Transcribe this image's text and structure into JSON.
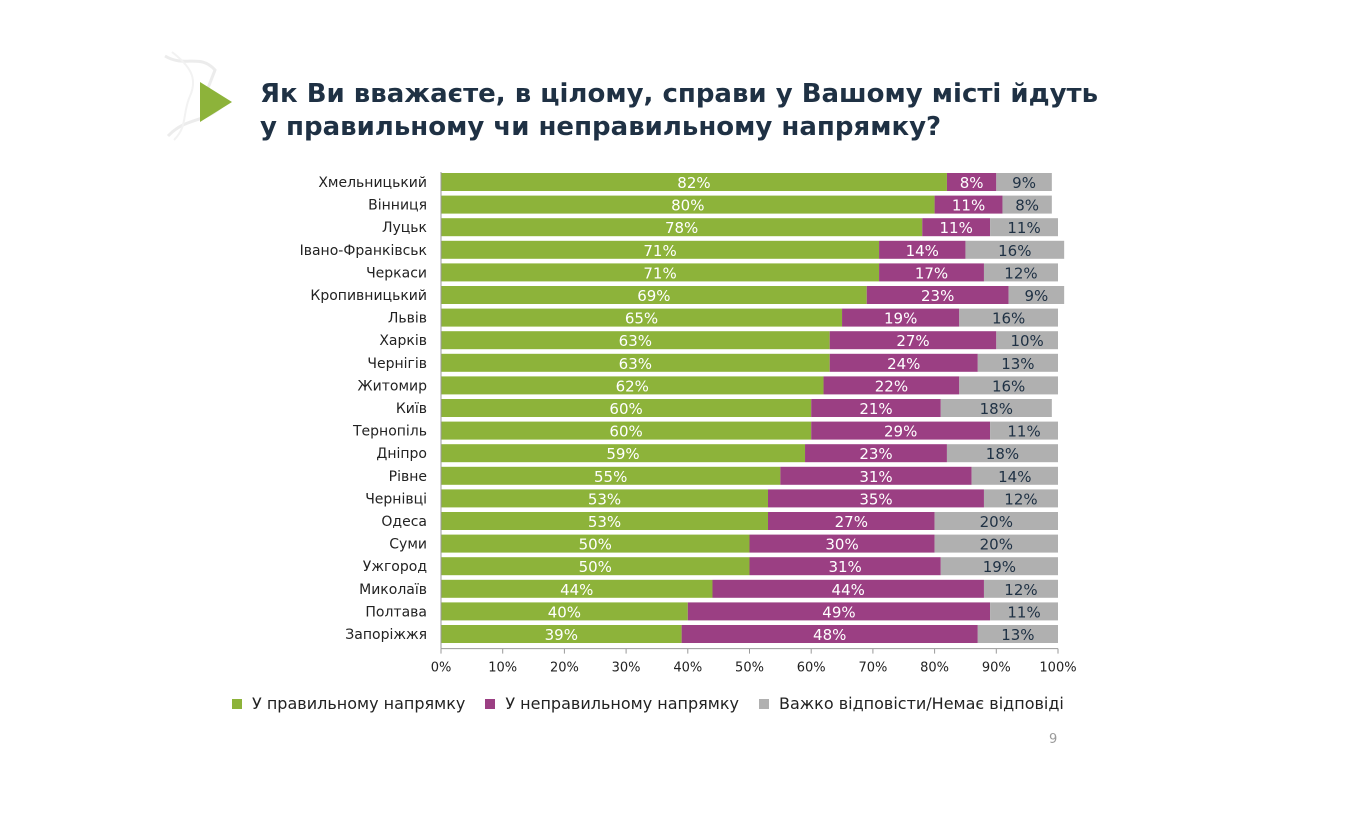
{
  "title": {
    "line1": "Як Ви вважаєте, в цілому, справи у Вашому місті йдуть",
    "line2": "у правильному чи неправильному напрямку?"
  },
  "page_number": "9",
  "colors": {
    "right": "#8db33a",
    "wrong": "#9b3f83",
    "hard": "#b0b0b0",
    "title": "#1f3144"
  },
  "chart_data": {
    "type": "bar",
    "orientation": "horizontal",
    "stacked": true,
    "categories": [
      "Хмельницький",
      "Вінниця",
      "Луцьк",
      "Івано-Франківськ",
      "Черкаси",
      "Кропивницький",
      "Львів",
      "Харків",
      "Чернігів",
      "Житомир",
      "Київ",
      "Тернопіль",
      "Дніпро",
      "Рівне",
      "Чернівці",
      "Одеса",
      "Суми",
      "Ужгород",
      "Миколаїв",
      "Полтава",
      "Запоріжжя"
    ],
    "series": [
      {
        "name": "У правильному напрямку",
        "color": "#8db33a",
        "values": [
          82,
          80,
          78,
          71,
          71,
          69,
          65,
          63,
          63,
          62,
          60,
          60,
          59,
          55,
          53,
          53,
          50,
          50,
          44,
          40,
          39
        ]
      },
      {
        "name": "У неправильному напрямку",
        "color": "#9b3f83",
        "values": [
          8,
          11,
          11,
          14,
          17,
          23,
          19,
          27,
          24,
          22,
          21,
          29,
          23,
          31,
          35,
          27,
          30,
          31,
          44,
          49,
          48
        ]
      },
      {
        "name": "Важко відповісти/Немає відповіді",
        "color": "#b0b0b0",
        "values": [
          9,
          8,
          11,
          16,
          12,
          9,
          16,
          10,
          13,
          16,
          18,
          11,
          18,
          14,
          12,
          20,
          20,
          19,
          12,
          11,
          13
        ]
      }
    ],
    "x_ticks": [
      "0%",
      "10%",
      "20%",
      "30%",
      "40%",
      "50%",
      "60%",
      "70%",
      "80%",
      "90%",
      "100%"
    ],
    "xlim": [
      0,
      100
    ],
    "grid": false,
    "legend": "bottom"
  }
}
